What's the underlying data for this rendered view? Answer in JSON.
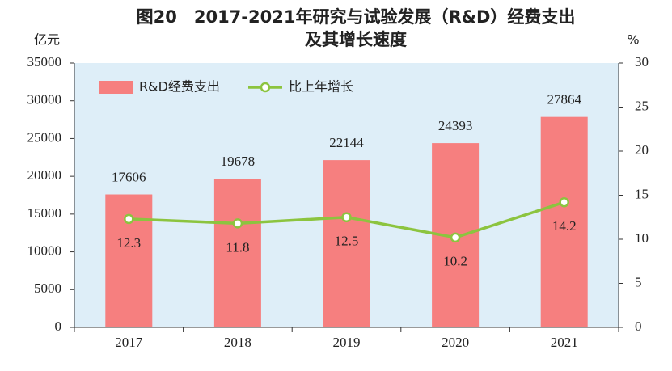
{
  "chart_data": {
    "type": "bar-line",
    "title": [
      "图20　2017-2021年研究与试验发展（R&D）经费支出",
      "及其增长速度"
    ],
    "y_label": "亿元",
    "y2_label": "%",
    "categories": [
      "2017",
      "2018",
      "2019",
      "2020",
      "2021"
    ],
    "series": [
      {
        "name": "R&D经费支出",
        "type": "bar",
        "color": "#f67f7f",
        "axis": "y",
        "values": [
          17606,
          19678,
          22144,
          24393,
          27864
        ]
      },
      {
        "name": "比上年增长",
        "type": "line",
        "color": "#8cc43f",
        "axis": "y2",
        "values": [
          12.3,
          11.8,
          12.5,
          10.2,
          14.2
        ]
      }
    ],
    "ylim": [
      0,
      35000
    ],
    "yticks": [
      0,
      5000,
      10000,
      15000,
      20000,
      25000,
      30000,
      35000
    ],
    "y2lim": [
      0,
      30
    ],
    "y2ticks": [
      0,
      5,
      10,
      15,
      20,
      25,
      30
    ],
    "legend": "top-left"
  }
}
